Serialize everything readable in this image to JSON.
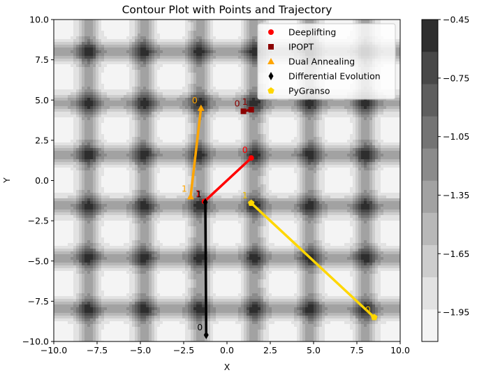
{
  "chart_data": {
    "type": "scatter",
    "title": "Contour Plot with Points and Trajectory",
    "xlabel": "X",
    "ylabel": "Y",
    "xlim": [
      -10,
      10
    ],
    "ylim": [
      -10,
      10
    ],
    "xticks": [
      "−10.0",
      "−7.5",
      "−5.0",
      "−2.5",
      "0.0",
      "2.5",
      "5.0",
      "7.5",
      "10.0"
    ],
    "yticks": [
      "−10.0",
      "−7.5",
      "−5.0",
      "−2.5",
      "0.0",
      "2.5",
      "5.0",
      "7.5",
      "10.0"
    ],
    "xtick_values": [
      -10,
      -7.5,
      -5,
      -2.5,
      0,
      2.5,
      5,
      7.5,
      10
    ],
    "ytick_values": [
      -10,
      -7.5,
      -5,
      -2.5,
      0,
      2.5,
      5,
      7.5,
      10
    ],
    "legend_position": "top-right",
    "colorbar": {
      "ticks": [
        "−0.45",
        "−0.75",
        "−1.05",
        "−1.35",
        "−1.65",
        "−1.95"
      ],
      "tick_values": [
        -0.45,
        -0.75,
        -1.05,
        -1.35,
        -1.65,
        -1.95
      ],
      "min": -2.1,
      "max": -0.45,
      "level_colors": [
        "#f4f4f4",
        "#e2e2e2",
        "#cdcdcd",
        "#b8b8b8",
        "#a2a2a2",
        "#8b8b8b",
        "#747474",
        "#5e5e5e",
        "#484848",
        "#2e2e2e"
      ]
    },
    "series": [
      {
        "name": "Deeplifting",
        "marker": "circle",
        "color": "#ff0000",
        "line_color": "#ff0000",
        "points": [
          {
            "x": 1.4,
            "y": 1.4,
            "label": "0"
          },
          {
            "x": -1.3,
            "y": -1.3,
            "label": "1"
          }
        ]
      },
      {
        "name": "IPOPT",
        "marker": "square",
        "color": "#8b0000",
        "line_color": "#8b0000",
        "points": [
          {
            "x": 0.95,
            "y": 4.3,
            "label": "0"
          },
          {
            "x": 1.4,
            "y": 4.4,
            "label": "1"
          }
        ]
      },
      {
        "name": "Dual Annealing",
        "marker": "triangle",
        "color": "#ffa500",
        "line_color": "#ffa500",
        "points": [
          {
            "x": -1.5,
            "y": 4.5,
            "label": "0"
          },
          {
            "x": -2.1,
            "y": -1.0,
            "label": "1"
          }
        ]
      },
      {
        "name": "Differential Evolution",
        "marker": "diamond",
        "color": "#000000",
        "line_color": "#000000",
        "points": [
          {
            "x": -1.2,
            "y": -9.6,
            "label": "0"
          },
          {
            "x": -1.25,
            "y": -1.35,
            "label": "1"
          }
        ]
      },
      {
        "name": "PyGranso",
        "marker": "pentagon",
        "color": "#ffd700",
        "line_color": "#ffd700",
        "points": [
          {
            "x": 8.5,
            "y": -8.5,
            "label": "0"
          },
          {
            "x": 1.4,
            "y": -1.4,
            "label": "1"
          }
        ]
      }
    ]
  }
}
